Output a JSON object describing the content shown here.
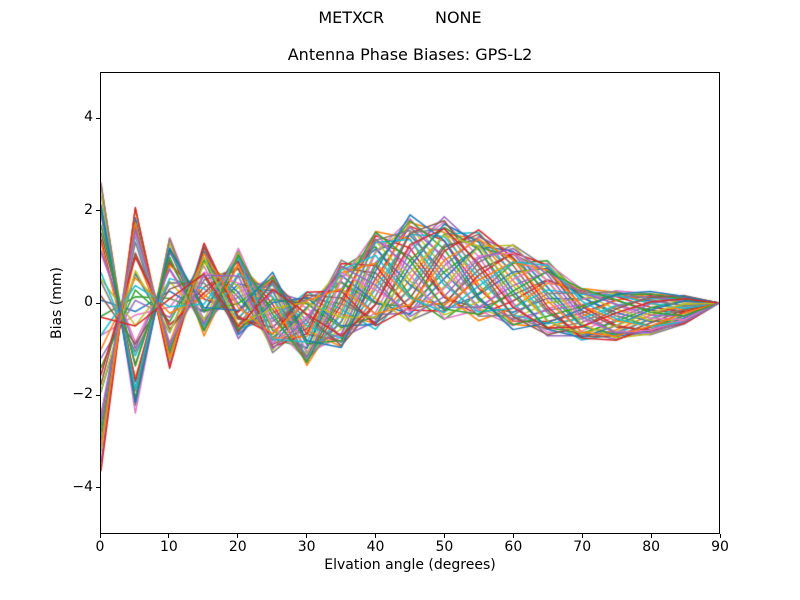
{
  "figure": {
    "suptitle": "METXCR          NONE",
    "axes_title": "Antenna Phase Biases: GPS-L2",
    "xlabel": "Elvation angle (degrees)",
    "ylabel": "Bias (mm)"
  },
  "chart_data": {
    "type": "line",
    "suptitle": "METXCR          NONE",
    "title": "Antenna Phase Biases: GPS-L2",
    "xlabel": "Elvation angle (degrees)",
    "ylabel": "Bias (mm)",
    "xlim": [
      0,
      90
    ],
    "ylim": [
      -5,
      5
    ],
    "xticks": [
      0,
      10,
      20,
      30,
      40,
      50,
      60,
      70,
      80,
      90
    ],
    "xtick_labels": [
      "0",
      "10",
      "20",
      "30",
      "40",
      "50",
      "60",
      "70",
      "80",
      "90"
    ],
    "yticks": [
      4,
      2,
      0,
      -2,
      -4
    ],
    "ytick_labels": [
      "4",
      "2",
      "0",
      "−2",
      "−4"
    ],
    "grid": false,
    "legend": "none",
    "n_series": 45,
    "line_width": 1.5,
    "palette": [
      "#1f77b4",
      "#ff7f0e",
      "#2ca02c",
      "#d62728",
      "#9467bd",
      "#8c564b",
      "#e377c2",
      "#7f7f7f",
      "#bcbd22",
      "#17becf"
    ],
    "description": "45 unlabeled antenna phase-bias curves, one per satellite, sampled every 5 degrees; all converge to 0 mm at 90 degrees; spread at 0 degrees is about -3.5 to +2.7 mm; band peaks near +1.8 mm around 45-50 degrees, dips near -1.3 mm around 27-32 degrees and near -0.9 mm around 70-75 degrees",
    "x": [
      0,
      5,
      10,
      15,
      20,
      25,
      30,
      35,
      40,
      45,
      50,
      55,
      60,
      65,
      70,
      75,
      80,
      85,
      90
    ],
    "model": {
      "formula": "y(series i, point j) = band_center[j] + series_amp[i] * band_halfwidth[j] * sin(PI * (twist_phase_pi[j] + series_phase_pi[i]))",
      "band_center": [
        -0.4,
        -0.15,
        0.05,
        0.3,
        0.2,
        -0.2,
        -0.55,
        -0.05,
        0.5,
        0.75,
        0.75,
        0.6,
        0.35,
        0.1,
        -0.24,
        -0.26,
        -0.22,
        -0.14,
        0.0
      ],
      "band_halfwidth": [
        3.2,
        2.3,
        1.45,
        1.0,
        0.95,
        0.85,
        0.8,
        0.95,
        1.08,
        1.15,
        1.1,
        0.97,
        0.91,
        0.81,
        0.57,
        0.55,
        0.46,
        0.31,
        0.0
      ],
      "twist_phase_pi": [
        8.5,
        7.45,
        6.5,
        5.65,
        4.9,
        4.25,
        3.67,
        3.17,
        2.72,
        2.32,
        1.96,
        1.62,
        1.3,
        1.0,
        0.72,
        0.48,
        0.28,
        0.12,
        0.0
      ],
      "series_phase_pi": [
        0.0,
        0.756,
        1.511,
        0.267,
        1.022,
        1.778,
        0.533,
        1.289,
        0.044,
        0.8,
        1.556,
        0.311,
        1.067,
        1.822,
        0.578,
        1.333,
        0.089,
        0.844,
        1.6,
        0.356,
        1.111,
        1.867,
        0.622,
        1.378,
        0.133,
        0.889,
        1.644,
        0.4,
        1.156,
        1.911,
        0.667,
        1.422,
        0.178,
        0.933,
        1.689,
        0.444,
        1.2,
        1.956,
        0.711,
        1.467,
        0.222,
        0.978,
        1.733,
        0.489,
        1.244
      ],
      "series_amp": [
        0.75,
        0.88,
        1.009,
        0.832,
        0.961,
        0.784,
        0.914,
        1.043,
        0.866,
        0.995,
        0.818,
        0.948,
        0.77,
        0.9,
        1.03,
        0.852,
        0.982,
        0.805,
        0.934,
        0.757,
        0.886,
        1.016,
        0.839,
        0.968,
        0.791,
        0.92,
        1.05,
        0.873,
        1.002,
        0.825,
        0.955,
        0.777,
        0.907,
        1.036,
        0.859,
        0.989,
        0.811,
        0.941,
        0.764,
        0.893,
        1.023,
        0.845,
        0.975,
        0.798,
        0.927
      ]
    }
  },
  "layout_colors": {
    "background": "#ffffff",
    "text": "#000000",
    "spine": "#000000"
  }
}
